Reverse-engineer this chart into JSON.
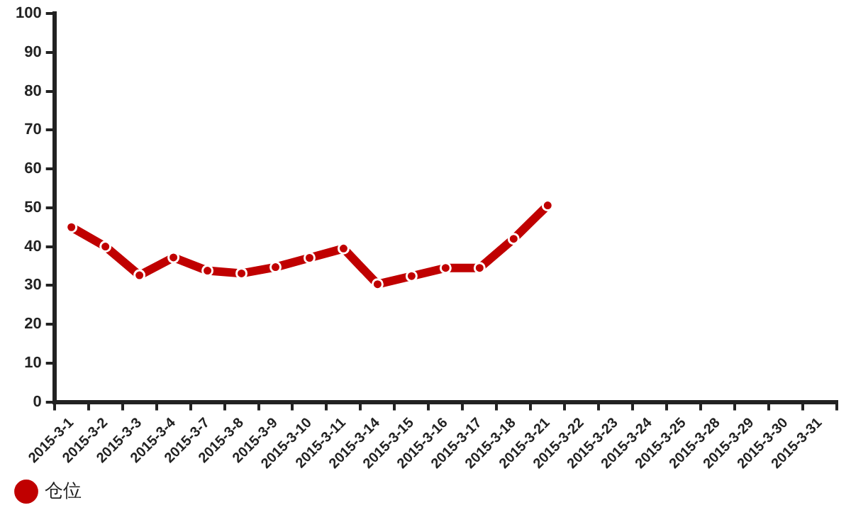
{
  "chart_data": {
    "type": "line",
    "categories": [
      "2015-3-1",
      "2015-3-2",
      "2015-3-3",
      "2015-3-4",
      "2015-3-7",
      "2015-3-8",
      "2015-3-9",
      "2015-3-10",
      "2015-3-11",
      "2015-3-14",
      "2015-3-15",
      "2015-3-16",
      "2015-3-17",
      "2015-3-18",
      "2015-3-21",
      "2015-3-22",
      "2015-3-23",
      "2015-3-24",
      "2015-3-25",
      "2015-3-28",
      "2015-3-29",
      "2015-3-30",
      "2015-3-31"
    ],
    "series": [
      {
        "name": "仓位",
        "color": "#c00000",
        "values": [
          45,
          40,
          32.6,
          37.2,
          33.8,
          33.1,
          34.7,
          37.1,
          39.5,
          30.3,
          32.4,
          34.5,
          34.5,
          42,
          50.6,
          null,
          null,
          null,
          null,
          null,
          null,
          null,
          null
        ]
      }
    ],
    "ylim": [
      0,
      100
    ],
    "yticks": [
      0,
      10,
      20,
      30,
      40,
      50,
      60,
      70,
      80,
      90,
      100
    ],
    "grid": false,
    "legend": "bottom left",
    "marker": "circle",
    "line_style": "solid"
  }
}
